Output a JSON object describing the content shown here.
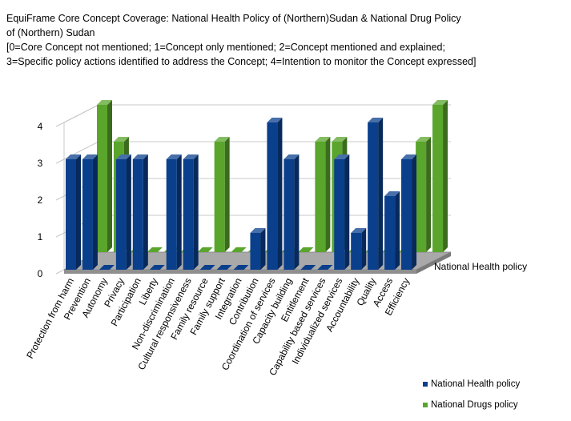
{
  "chart_data": {
    "type": "bar",
    "title_lines": [
      "EquiFrame Core Concept Coverage: National Health Policy of (Northern)Sudan & National Drug Policy",
      " of (Northern) Sudan",
      "[0=Core Concept not mentioned; 1=Concept only mentioned;  2=Concept mentioned and explained;",
      "3=Specific policy actions identified  to address the Concept; 4=Intention to monitor the Concept expressed]"
    ],
    "categories": [
      "Protection from harm",
      "Prevention",
      "Autonomy",
      "Privacy",
      "Participation",
      "Liberty",
      "Non-discrimination",
      "Cultural responsiveness",
      "Family resource",
      "Family support",
      "Integration",
      "Contribution",
      "Coordination of services",
      "Capacity building",
      "Entitlement",
      "Capability based services",
      "Individualized services",
      "Accountability",
      "Quality",
      "Access",
      "Efficiency"
    ],
    "series": [
      {
        "name": "National Health policy",
        "color": "#0a3f8c",
        "values": [
          3,
          3,
          0,
          3,
          3,
          0,
          3,
          3,
          0,
          0,
          0,
          1,
          4,
          3,
          0,
          0,
          3,
          1,
          4,
          2,
          3
        ]
      },
      {
        "name": "National Drugs policy",
        "color": "#5aa52c",
        "values": [
          4,
          3,
          0,
          0,
          0,
          0,
          0,
          3,
          0,
          0,
          0,
          0,
          0,
          3,
          3,
          0,
          0,
          0,
          0,
          3,
          4
        ]
      }
    ],
    "yticks": [
      "0",
      "1",
      "2",
      "3",
      "4"
    ],
    "ylim": [
      0,
      4
    ],
    "depth_axis_label": "National Health policy",
    "legend_position": "bottom-right",
    "grid": true
  }
}
